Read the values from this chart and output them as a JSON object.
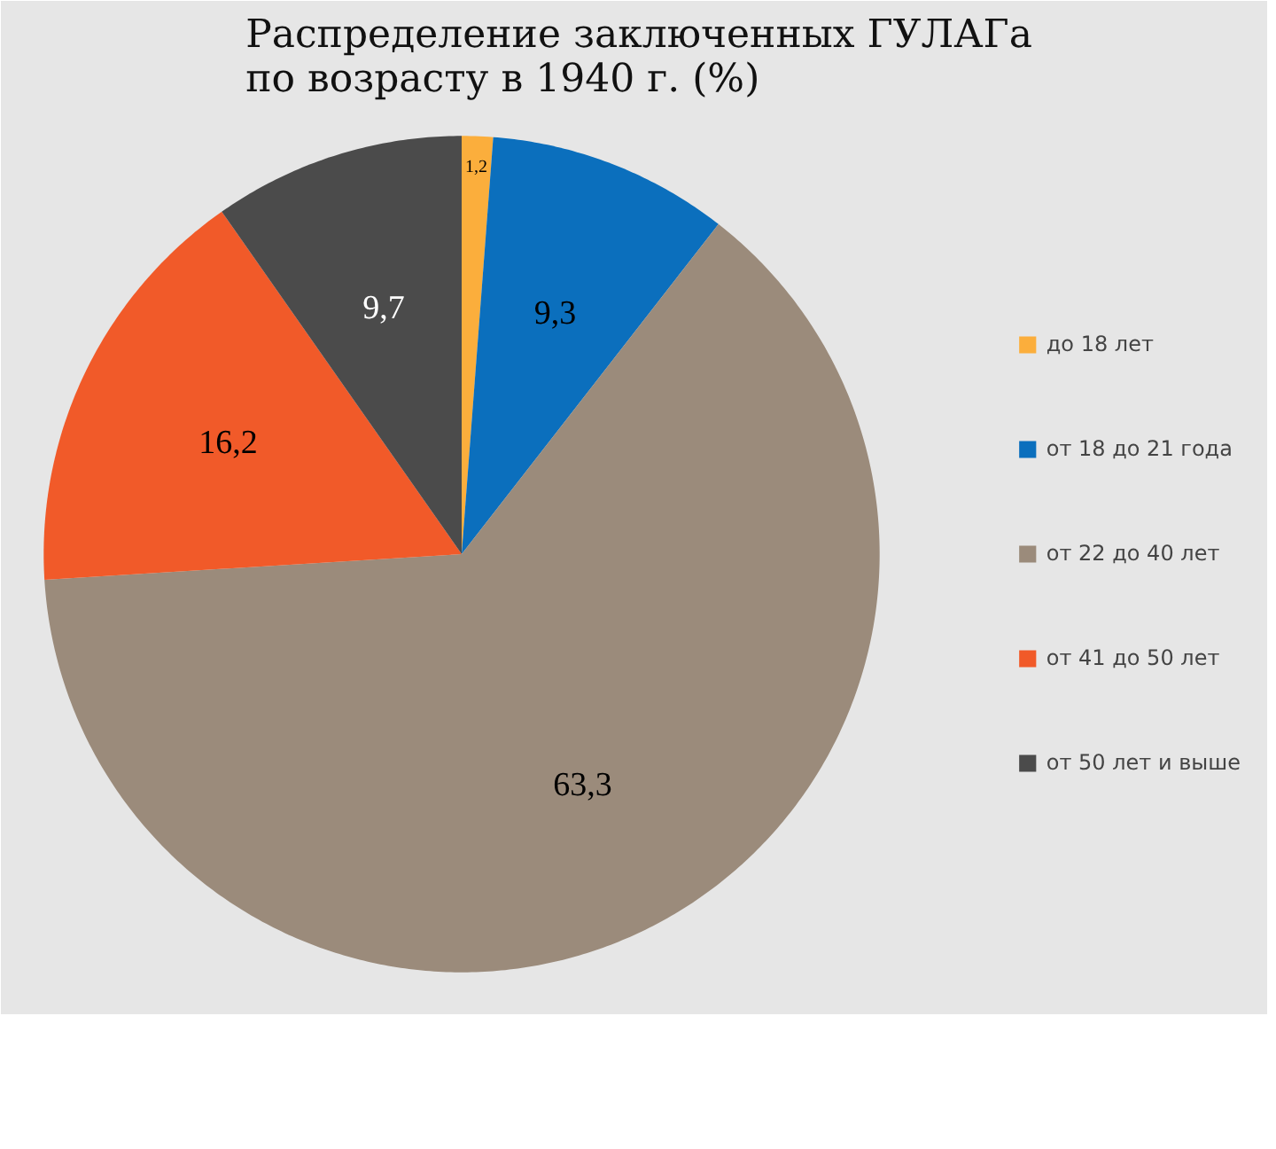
{
  "chart_data": {
    "type": "pie",
    "title": "Распределение заключенных ГУЛАГа\nпо возрасту в 1940 г. (%)",
    "categories": [
      "до 18 лет",
      "от 18 до 21 года",
      "от 22 до 40 лет",
      "от 41 до 50 лет",
      "от 50 лет и выше"
    ],
    "values": [
      1.2,
      9.3,
      63.3,
      16.2,
      9.7
    ],
    "value_labels": [
      "1,2",
      "9,3",
      "63,3",
      "16,2",
      "9,7"
    ],
    "colors": [
      "#fbae3c",
      "#0b6fbd",
      "#9b8b7b",
      "#f15a29",
      "#4b4b4b"
    ],
    "legend": "right"
  }
}
